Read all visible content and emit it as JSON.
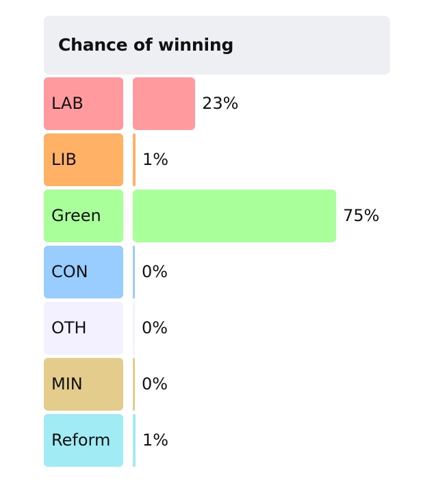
{
  "title": "Chance of winning",
  "chart_data": {
    "type": "bar",
    "orientation": "horizontal",
    "title": "Chance of winning",
    "categories": [
      "LAB",
      "LIB",
      "Green",
      "CON",
      "OTH",
      "MIN",
      "Reform"
    ],
    "values": [
      23,
      1,
      75,
      0,
      0,
      0,
      1
    ],
    "value_labels": [
      "23%",
      "1%",
      "75%",
      "0%",
      "0%",
      "0%",
      "1%"
    ],
    "xlim": [
      0,
      100
    ],
    "colors": [
      "#ff9b9e",
      "#ffb266",
      "#a9ff99",
      "#99ccff",
      "#f3f0ff",
      "#e4cd8c",
      "#a0ebf4"
    ],
    "grid": false
  }
}
